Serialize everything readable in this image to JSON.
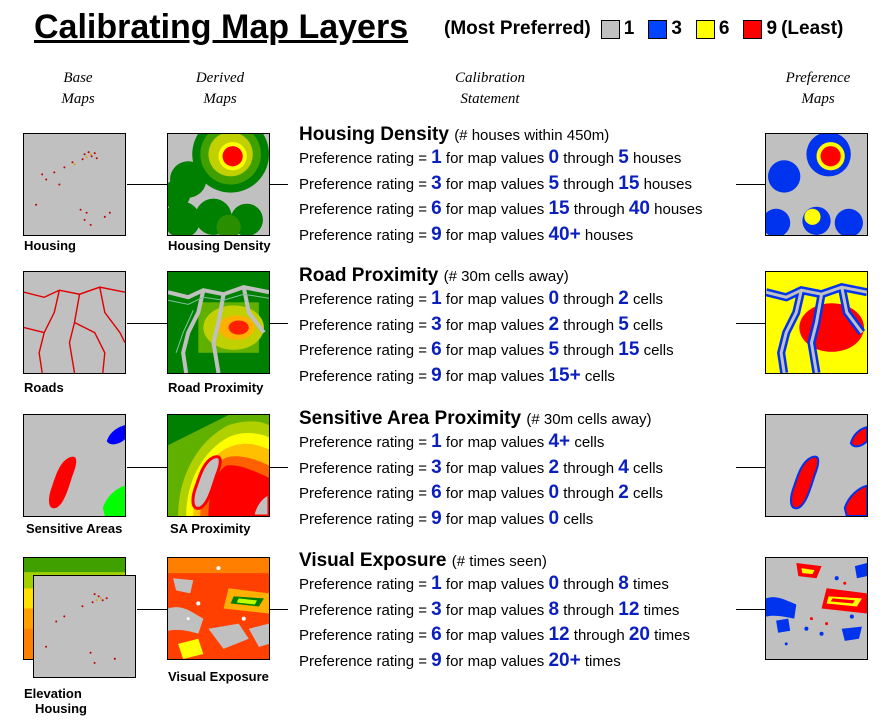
{
  "title": "Calibrating Map Layers",
  "legend": {
    "most_label": "(Most Preferred)",
    "least_label": "(Least)",
    "items": [
      {
        "value": "1",
        "color": "#c0c0c0"
      },
      {
        "value": "3",
        "color": "#0044ff"
      },
      {
        "value": "6",
        "color": "#ffff00"
      },
      {
        "value": "9",
        "color": "#ff0000"
      }
    ]
  },
  "columns": {
    "base": [
      "Base",
      "Maps"
    ],
    "derived": [
      "Derived",
      "Maps"
    ],
    "statement": [
      "Calibration",
      "Statement"
    ],
    "preference": [
      "Preference",
      "Maps"
    ]
  },
  "rows": [
    {
      "base_caption": "Housing",
      "derived_caption": "Housing Density",
      "title": "Housing Density",
      "unit": "(# houses within 450m)",
      "lines": [
        {
          "prefix": "Preference rating =",
          "rating": "1",
          "mid": "for map values",
          "from": "0",
          "through": "through",
          "to": "5",
          "unit": "houses"
        },
        {
          "prefix": "Preference rating =",
          "rating": "3",
          "mid": "for map values",
          "from": "5",
          "through": "through",
          "to": "15",
          "unit": "houses"
        },
        {
          "prefix": "Preference rating =",
          "rating": "6",
          "mid": "for map values",
          "from": "15",
          "through": "through",
          "to": "40",
          "unit": "houses"
        },
        {
          "prefix": "Preference rating =",
          "rating": "9",
          "mid": "for map values",
          "from": "40+",
          "through": "",
          "to": "",
          "unit": "houses"
        }
      ]
    },
    {
      "base_caption": "Roads",
      "derived_caption": "Road Proximity",
      "title": "Road Proximity",
      "unit": "(# 30m cells away)",
      "lines": [
        {
          "prefix": "Preference rating =",
          "rating": "1",
          "mid": "for map values",
          "from": "0",
          "through": "through",
          "to": "2",
          "unit": "cells"
        },
        {
          "prefix": "Preference rating =",
          "rating": "3",
          "mid": "for map values",
          "from": "2",
          "through": "through",
          "to": "5",
          "unit": "cells"
        },
        {
          "prefix": "Preference rating =",
          "rating": "6",
          "mid": "for map values",
          "from": "5",
          "through": "through",
          "to": "15",
          "unit": "cells"
        },
        {
          "prefix": "Preference rating =",
          "rating": "9",
          "mid": "for map values",
          "from": "15+",
          "through": "",
          "to": "",
          "unit": "cells"
        }
      ]
    },
    {
      "base_caption": "Sensitive Areas",
      "derived_caption": "SA Proximity",
      "title": "Sensitive Area Proximity",
      "unit": "(# 30m cells away)",
      "lines": [
        {
          "prefix": "Preference rating =",
          "rating": "1",
          "mid": "for map values",
          "from": "4+",
          "through": "",
          "to": "",
          "unit": "cells"
        },
        {
          "prefix": "Preference rating =",
          "rating": "3",
          "mid": "for map values",
          "from": "2",
          "through": "through",
          "to": "4",
          "unit": "cells"
        },
        {
          "prefix": "Preference rating =",
          "rating": "6",
          "mid": "for map values",
          "from": "0",
          "through": "through",
          "to": "2",
          "unit": "cells"
        },
        {
          "prefix": "Preference rating =",
          "rating": "9",
          "mid": "for map values",
          "from": "0",
          "through": "",
          "to": "",
          "unit": "cells"
        }
      ]
    },
    {
      "base_caption": "Elevation",
      "base_caption2": "Housing",
      "derived_caption": "Visual Exposure",
      "title": "Visual Exposure",
      "unit": "(# times seen)",
      "lines": [
        {
          "prefix": "Preference rating =",
          "rating": "1",
          "mid": "for map values",
          "from": "0",
          "through": "through",
          "to": "8",
          "unit": "times"
        },
        {
          "prefix": "Preference rating =",
          "rating": "3",
          "mid": "for map values",
          "from": "8",
          "through": "through",
          "to": "12",
          "unit": "times"
        },
        {
          "prefix": "Preference rating =",
          "rating": "6",
          "mid": "for map values",
          "from": "12",
          "through": "through",
          "to": "20",
          "unit": "times"
        },
        {
          "prefix": "Preference rating =",
          "rating": "9",
          "mid": "for map values",
          "from": "20+",
          "through": "",
          "to": "",
          "unit": "times"
        }
      ]
    }
  ]
}
